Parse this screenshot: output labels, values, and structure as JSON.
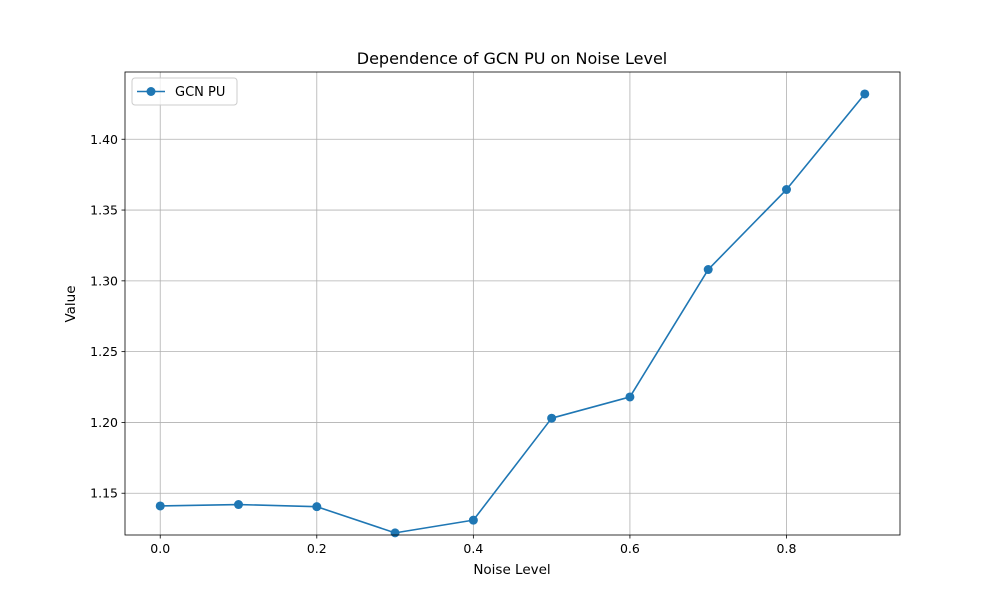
{
  "chart_data": {
    "type": "line",
    "title": "Dependence of GCN PU on Noise Level",
    "xlabel": "Noise Level",
    "ylabel": "Value",
    "x": [
      0.0,
      0.1,
      0.2,
      0.3,
      0.4,
      0.5,
      0.6,
      0.7,
      0.8,
      0.9
    ],
    "series": [
      {
        "name": "GCN PU",
        "values": [
          1.141,
          1.142,
          1.1405,
          1.122,
          1.131,
          1.203,
          1.218,
          1.308,
          1.3645,
          1.432
        ],
        "color": "#1f77b4",
        "marker": "circle"
      }
    ],
    "xlim": [
      -0.045,
      0.945
    ],
    "ylim": [
      1.1205,
      1.4475
    ],
    "xticks": [
      0.0,
      0.2,
      0.4,
      0.6,
      0.8
    ],
    "xtick_labels": [
      "0.0",
      "0.2",
      "0.4",
      "0.6",
      "0.8"
    ],
    "yticks": [
      1.15,
      1.2,
      1.25,
      1.3,
      1.35,
      1.4
    ],
    "ytick_labels": [
      "1.15",
      "1.20",
      "1.25",
      "1.30",
      "1.35",
      "1.40"
    ],
    "grid": true,
    "legend_position": "top-left"
  }
}
